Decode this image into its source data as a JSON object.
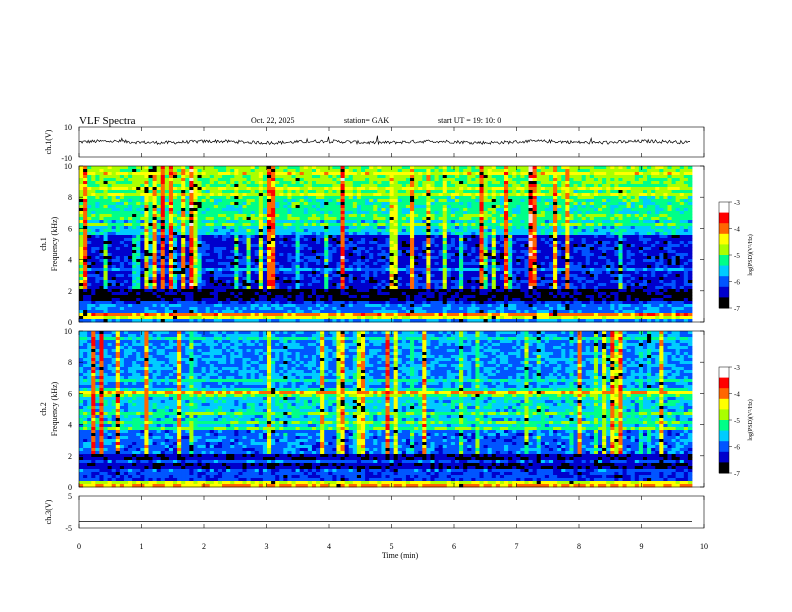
{
  "header": {
    "title": "VLF  Spectra",
    "date": "Oct. 22, 2025",
    "station": "station= GAK",
    "start": "start  UT =   19: 10: 0"
  },
  "chart_data": [
    {
      "type": "line",
      "panel": "ch1-waveform",
      "ylabel": "ch.1(V)",
      "ylim": [
        -10,
        10
      ],
      "yticks": [
        "10",
        "-10"
      ],
      "series": [
        {
          "values": [
            0,
            0.3,
            -0.4,
            0.2,
            1.0,
            -0.6,
            0.4,
            -0.2,
            0.1,
            -0.5,
            0.3,
            0.6,
            -0.3,
            0.2,
            -0.1,
            0.4,
            -0.6,
            0.2,
            0.5,
            -0.2
          ]
        }
      ]
    },
    {
      "type": "heatmap",
      "panel": "ch1-spectrogram",
      "ylabel": "ch.1\nFrequency (kHz)",
      "ylim": [
        0,
        10
      ],
      "yticks": [
        "0",
        "2",
        "4",
        "6",
        "8",
        "10"
      ],
      "colorbar": {
        "label": "log(PSD)(V²/Hz)",
        "range": [
          -7,
          -3
        ],
        "ticks": [
          "-3",
          "-4",
          "-5",
          "-6",
          "-7"
        ]
      }
    },
    {
      "type": "heatmap",
      "panel": "ch2-spectrogram",
      "ylabel": "ch.2\nFrequency (kHz)",
      "ylim": [
        0,
        10
      ],
      "yticks": [
        "0",
        "2",
        "4",
        "6",
        "8",
        "10"
      ],
      "colorbar": {
        "label": "log(PSD)(V²/Hz)",
        "range": [
          -7,
          -3
        ],
        "ticks": [
          "-3",
          "-4",
          "-5",
          "-6",
          "-7"
        ]
      }
    },
    {
      "type": "line",
      "panel": "ch3-waveform",
      "ylabel": "ch.3(V)",
      "ylim": [
        -5,
        5
      ],
      "yticks": [
        "5",
        "-5"
      ],
      "series": [
        {
          "values": [
            -3,
            -3
          ]
        }
      ]
    }
  ],
  "x_axis": {
    "label": "Time  (min)",
    "range": [
      0,
      10
    ],
    "ticks": [
      "0",
      "1",
      "2",
      "3",
      "4",
      "5",
      "6",
      "7",
      "8",
      "9",
      "10"
    ]
  },
  "colormap": [
    "#000000",
    "#0000cc",
    "#0055ff",
    "#00ccff",
    "#00ff88",
    "#aaff00",
    "#ffff00",
    "#ff6600",
    "#ff0000",
    "#ffdddd"
  ]
}
